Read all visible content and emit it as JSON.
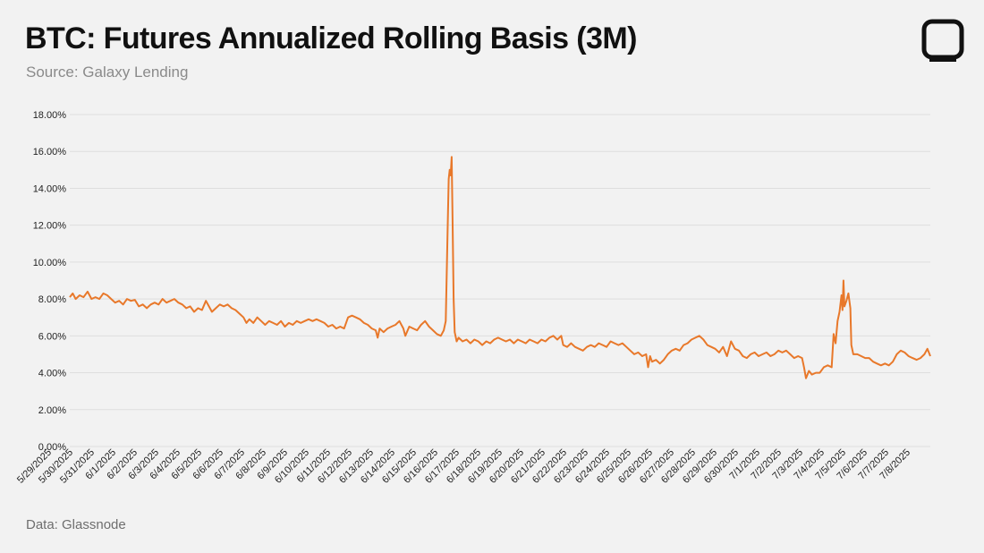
{
  "title": "BTC: Futures Annualized Rolling Basis (3M)",
  "subtitle": "Source: Galaxy Lending",
  "footer": "Data: Glassnode",
  "logo_icon": "square-logo-icon",
  "colors": {
    "line": "#e8782a",
    "grid": "#dedede",
    "background": "#f2f2f2",
    "logo": "#111111"
  },
  "chart_data": {
    "type": "line",
    "ylim": [
      0,
      18
    ],
    "yticks": [
      0,
      2,
      4,
      6,
      8,
      10,
      12,
      14,
      16,
      18
    ],
    "yticklabels": [
      "0.00%",
      "2.00%",
      "4.00%",
      "6.00%",
      "8.00%",
      "10.00%",
      "12.00%",
      "14.00%",
      "16.00%",
      "18.00%"
    ],
    "grid": true,
    "legend": "none",
    "xticklabels": [
      "5/29/2025",
      "5/30/2025",
      "5/31/2025",
      "6/1/2025",
      "6/2/2025",
      "6/3/2025",
      "6/4/2025",
      "6/5/2025",
      "6/6/2025",
      "6/7/2025",
      "6/8/2025",
      "6/9/2025",
      "6/10/2025",
      "6/11/2025",
      "6/12/2025",
      "6/13/2025",
      "6/14/2025",
      "6/15/2025",
      "6/16/2025",
      "6/17/2025",
      "6/18/2025",
      "6/19/2025",
      "6/20/2025",
      "6/21/2025",
      "6/22/2025",
      "6/23/2025",
      "6/24/2025",
      "6/25/2025",
      "6/26/2025",
      "6/27/2025",
      "6/28/2025",
      "6/29/2025",
      "6/30/2025",
      "7/1/2025",
      "7/2/2025",
      "7/3/2025",
      "7/4/2025",
      "7/5/2025",
      "7/6/2025",
      "7/7/2025",
      "7/8/2025"
    ],
    "x_day_range": [
      0,
      41.2
    ],
    "series": [
      {
        "color": "#e8782a",
        "points": [
          [
            0,
            8.1
          ],
          [
            0.15,
            8.3
          ],
          [
            0.3,
            8.0
          ],
          [
            0.5,
            8.2
          ],
          [
            0.7,
            8.1
          ],
          [
            0.9,
            8.4
          ],
          [
            1.1,
            8.0
          ],
          [
            1.3,
            8.1
          ],
          [
            1.5,
            8.0
          ],
          [
            1.7,
            8.3
          ],
          [
            1.9,
            8.2
          ],
          [
            2.1,
            8.0
          ],
          [
            2.3,
            7.8
          ],
          [
            2.5,
            7.9
          ],
          [
            2.7,
            7.7
          ],
          [
            2.9,
            8.0
          ],
          [
            3.1,
            7.9
          ],
          [
            3.3,
            7.95
          ],
          [
            3.5,
            7.6
          ],
          [
            3.7,
            7.7
          ],
          [
            3.9,
            7.5
          ],
          [
            4.1,
            7.7
          ],
          [
            4.3,
            7.8
          ],
          [
            4.5,
            7.7
          ],
          [
            4.7,
            8.0
          ],
          [
            4.9,
            7.8
          ],
          [
            5.1,
            7.9
          ],
          [
            5.3,
            8.0
          ],
          [
            5.5,
            7.8
          ],
          [
            5.7,
            7.7
          ],
          [
            5.9,
            7.5
          ],
          [
            6.1,
            7.6
          ],
          [
            6.3,
            7.3
          ],
          [
            6.5,
            7.5
          ],
          [
            6.7,
            7.4
          ],
          [
            6.9,
            7.9
          ],
          [
            7.05,
            7.6
          ],
          [
            7.2,
            7.3
          ],
          [
            7.4,
            7.5
          ],
          [
            7.6,
            7.7
          ],
          [
            7.8,
            7.6
          ],
          [
            8.0,
            7.7
          ],
          [
            8.2,
            7.5
          ],
          [
            8.4,
            7.4
          ],
          [
            8.6,
            7.2
          ],
          [
            8.8,
            7.0
          ],
          [
            8.95,
            6.7
          ],
          [
            9.1,
            6.9
          ],
          [
            9.3,
            6.7
          ],
          [
            9.5,
            7.0
          ],
          [
            9.7,
            6.8
          ],
          [
            9.9,
            6.6
          ],
          [
            10.1,
            6.8
          ],
          [
            10.3,
            6.7
          ],
          [
            10.5,
            6.6
          ],
          [
            10.7,
            6.8
          ],
          [
            10.9,
            6.5
          ],
          [
            11.1,
            6.7
          ],
          [
            11.3,
            6.6
          ],
          [
            11.5,
            6.8
          ],
          [
            11.7,
            6.7
          ],
          [
            11.9,
            6.8
          ],
          [
            12.1,
            6.9
          ],
          [
            12.3,
            6.8
          ],
          [
            12.5,
            6.9
          ],
          [
            12.7,
            6.8
          ],
          [
            12.9,
            6.7
          ],
          [
            13.1,
            6.5
          ],
          [
            13.3,
            6.6
          ],
          [
            13.5,
            6.4
          ],
          [
            13.7,
            6.5
          ],
          [
            13.9,
            6.4
          ],
          [
            14.1,
            7.0
          ],
          [
            14.3,
            7.1
          ],
          [
            14.5,
            7.0
          ],
          [
            14.7,
            6.9
          ],
          [
            14.9,
            6.7
          ],
          [
            15.1,
            6.6
          ],
          [
            15.3,
            6.4
          ],
          [
            15.5,
            6.3
          ],
          [
            15.6,
            5.9
          ],
          [
            15.7,
            6.4
          ],
          [
            15.9,
            6.2
          ],
          [
            16.1,
            6.4
          ],
          [
            16.3,
            6.5
          ],
          [
            16.5,
            6.6
          ],
          [
            16.7,
            6.8
          ],
          [
            16.9,
            6.4
          ],
          [
            17.0,
            6.0
          ],
          [
            17.2,
            6.5
          ],
          [
            17.4,
            6.4
          ],
          [
            17.6,
            6.3
          ],
          [
            17.8,
            6.6
          ],
          [
            18.0,
            6.8
          ],
          [
            18.2,
            6.5
          ],
          [
            18.4,
            6.3
          ],
          [
            18.6,
            6.1
          ],
          [
            18.8,
            6.0
          ],
          [
            18.95,
            6.3
          ],
          [
            19.05,
            6.8
          ],
          [
            19.15,
            12.0
          ],
          [
            19.2,
            14.5
          ],
          [
            19.25,
            15.0
          ],
          [
            19.3,
            14.7
          ],
          [
            19.35,
            15.7
          ],
          [
            19.4,
            12.0
          ],
          [
            19.45,
            8.0
          ],
          [
            19.5,
            6.2
          ],
          [
            19.6,
            5.7
          ],
          [
            19.7,
            5.9
          ],
          [
            19.9,
            5.7
          ],
          [
            20.1,
            5.8
          ],
          [
            20.3,
            5.6
          ],
          [
            20.5,
            5.8
          ],
          [
            20.7,
            5.7
          ],
          [
            20.9,
            5.5
          ],
          [
            21.1,
            5.7
          ],
          [
            21.3,
            5.6
          ],
          [
            21.5,
            5.8
          ],
          [
            21.7,
            5.9
          ],
          [
            21.9,
            5.8
          ],
          [
            22.1,
            5.7
          ],
          [
            22.3,
            5.8
          ],
          [
            22.5,
            5.6
          ],
          [
            22.7,
            5.8
          ],
          [
            22.9,
            5.7
          ],
          [
            23.1,
            5.6
          ],
          [
            23.3,
            5.8
          ],
          [
            23.5,
            5.7
          ],
          [
            23.7,
            5.6
          ],
          [
            23.9,
            5.8
          ],
          [
            24.1,
            5.7
          ],
          [
            24.3,
            5.9
          ],
          [
            24.5,
            6.0
          ],
          [
            24.7,
            5.8
          ],
          [
            24.9,
            6.0
          ],
          [
            25.0,
            5.5
          ],
          [
            25.2,
            5.4
          ],
          [
            25.4,
            5.6
          ],
          [
            25.6,
            5.4
          ],
          [
            25.8,
            5.3
          ],
          [
            26.0,
            5.2
          ],
          [
            26.2,
            5.4
          ],
          [
            26.4,
            5.5
          ],
          [
            26.6,
            5.4
          ],
          [
            26.8,
            5.6
          ],
          [
            27.0,
            5.5
          ],
          [
            27.2,
            5.4
          ],
          [
            27.4,
            5.7
          ],
          [
            27.6,
            5.6
          ],
          [
            27.8,
            5.5
          ],
          [
            28.0,
            5.6
          ],
          [
            28.2,
            5.4
          ],
          [
            28.4,
            5.2
          ],
          [
            28.6,
            5.0
          ],
          [
            28.8,
            5.1
          ],
          [
            29.0,
            4.9
          ],
          [
            29.2,
            5.0
          ],
          [
            29.3,
            4.3
          ],
          [
            29.4,
            4.9
          ],
          [
            29.5,
            4.6
          ],
          [
            29.7,
            4.7
          ],
          [
            29.9,
            4.5
          ],
          [
            30.1,
            4.7
          ],
          [
            30.3,
            5.0
          ],
          [
            30.5,
            5.2
          ],
          [
            30.7,
            5.3
          ],
          [
            30.9,
            5.2
          ],
          [
            31.1,
            5.5
          ],
          [
            31.3,
            5.6
          ],
          [
            31.5,
            5.8
          ],
          [
            31.7,
            5.9
          ],
          [
            31.9,
            6.0
          ],
          [
            32.1,
            5.8
          ],
          [
            32.3,
            5.5
          ],
          [
            32.5,
            5.4
          ],
          [
            32.7,
            5.3
          ],
          [
            32.9,
            5.1
          ],
          [
            33.1,
            5.4
          ],
          [
            33.3,
            4.9
          ],
          [
            33.5,
            5.7
          ],
          [
            33.7,
            5.3
          ],
          [
            33.9,
            5.2
          ],
          [
            34.1,
            4.9
          ],
          [
            34.3,
            4.8
          ],
          [
            34.5,
            5.0
          ],
          [
            34.7,
            5.1
          ],
          [
            34.9,
            4.9
          ],
          [
            35.1,
            5.0
          ],
          [
            35.3,
            5.1
          ],
          [
            35.5,
            4.9
          ],
          [
            35.7,
            5.0
          ],
          [
            35.9,
            5.2
          ],
          [
            36.1,
            5.1
          ],
          [
            36.3,
            5.2
          ],
          [
            36.5,
            5.0
          ],
          [
            36.7,
            4.8
          ],
          [
            36.9,
            4.9
          ],
          [
            37.1,
            4.8
          ],
          [
            37.2,
            4.3
          ],
          [
            37.3,
            3.7
          ],
          [
            37.45,
            4.1
          ],
          [
            37.6,
            3.9
          ],
          [
            37.8,
            4.0
          ],
          [
            38.0,
            4.0
          ],
          [
            38.2,
            4.3
          ],
          [
            38.4,
            4.4
          ],
          [
            38.6,
            4.3
          ],
          [
            38.7,
            6.1
          ],
          [
            38.8,
            5.6
          ],
          [
            38.9,
            6.8
          ],
          [
            39.0,
            7.3
          ],
          [
            39.1,
            8.2
          ],
          [
            39.15,
            7.4
          ],
          [
            39.2,
            9.0
          ],
          [
            39.25,
            7.6
          ],
          [
            39.35,
            7.9
          ],
          [
            39.45,
            8.3
          ],
          [
            39.55,
            7.5
          ],
          [
            39.6,
            5.5
          ],
          [
            39.7,
            5.0
          ],
          [
            39.9,
            5.0
          ],
          [
            40.1,
            4.9
          ],
          [
            40.3,
            4.8
          ],
          [
            40.5,
            4.8
          ],
          [
            40.7,
            4.6
          ],
          [
            40.9,
            4.5
          ],
          [
            41.1,
            4.4
          ],
          [
            41.3,
            4.5
          ],
          [
            41.5,
            4.4
          ],
          [
            41.7,
            4.6
          ],
          [
            41.9,
            5.0
          ],
          [
            42.1,
            5.2
          ],
          [
            42.3,
            5.1
          ],
          [
            42.5,
            4.9
          ],
          [
            42.7,
            4.8
          ],
          [
            42.9,
            4.7
          ],
          [
            43.1,
            4.8
          ],
          [
            43.3,
            5.0
          ],
          [
            43.45,
            5.3
          ],
          [
            43.6,
            4.9
          ]
        ]
      }
    ]
  }
}
